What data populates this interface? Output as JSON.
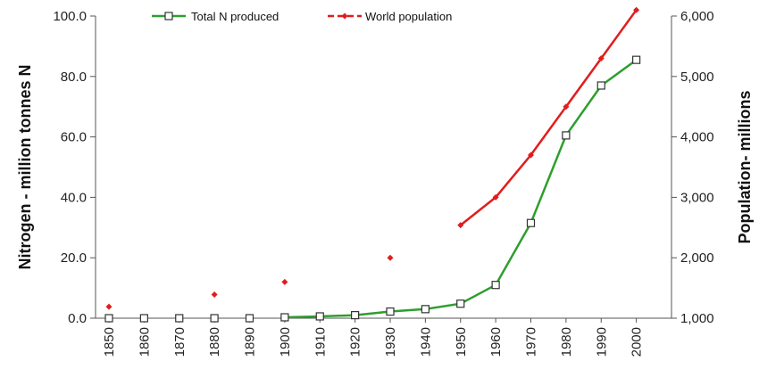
{
  "chart_data": {
    "type": "line",
    "x": [
      1850,
      1860,
      1870,
      1880,
      1890,
      1900,
      1910,
      1920,
      1930,
      1940,
      1950,
      1960,
      1970,
      1980,
      1990,
      2000
    ],
    "x_tick_labels": [
      "1850",
      "1860",
      "1870",
      "1880",
      "1890",
      "1900",
      "1910",
      "1920",
      "1930",
      "1940",
      "1950",
      "1960",
      "1970",
      "1980",
      "1990",
      "2000"
    ],
    "ylabel": "Nitrogen - million tonnes N",
    "ylim": [
      0,
      100
    ],
    "y_ticks": [
      0,
      20,
      40,
      60,
      80,
      100
    ],
    "y_tick_labels": [
      "0.0",
      "20.0",
      "40.0",
      "60.0",
      "80.0",
      "100.0"
    ],
    "y2label": "Population- millions",
    "y2lim": [
      1000,
      6000
    ],
    "y2_ticks": [
      1000,
      2000,
      3000,
      4000,
      5000,
      6000
    ],
    "y2_tick_labels": [
      "1,000",
      "2,000",
      "3,000",
      "4,000",
      "5,000",
      "6,000"
    ],
    "legend_position": "top",
    "grid": false,
    "series": [
      {
        "name": "Total N produced",
        "axis": "left",
        "color": "#2e9e2e",
        "marker": "open-square",
        "points": [
          [
            1850,
            0.0
          ],
          [
            1860,
            0.0
          ],
          [
            1870,
            0.0
          ],
          [
            1880,
            0.0
          ],
          [
            1890,
            0.0
          ],
          [
            1900,
            0.3
          ],
          [
            1910,
            0.6
          ],
          [
            1920,
            1.0
          ],
          [
            1930,
            2.2
          ],
          [
            1940,
            3.0
          ],
          [
            1950,
            4.8
          ],
          [
            1960,
            11.0
          ],
          [
            1970,
            31.5
          ],
          [
            1980,
            60.5
          ],
          [
            1990,
            77.0
          ],
          [
            2000,
            85.5
          ]
        ],
        "connected_from": 1900
      },
      {
        "name": "World population",
        "axis": "right",
        "color": "#e11d1d",
        "marker": "diamond",
        "points": [
          [
            1850,
            1190
          ],
          [
            1880,
            1390
          ],
          [
            1900,
            1600
          ],
          [
            1930,
            2000
          ],
          [
            1950,
            2540
          ],
          [
            1960,
            3000
          ],
          [
            1970,
            3700
          ],
          [
            1980,
            4500
          ],
          [
            1990,
            5300
          ],
          [
            2000,
            6100
          ]
        ],
        "connected_from": 1950
      }
    ]
  }
}
